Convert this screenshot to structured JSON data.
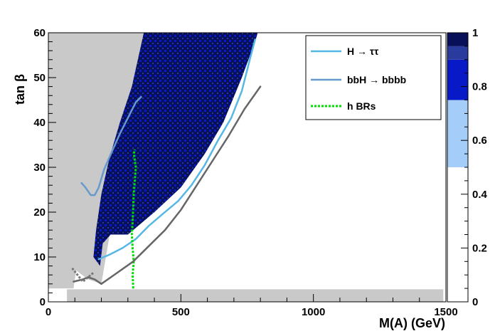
{
  "chart_data": {
    "type": "heatmap",
    "xlabel": "M(A) (GeV)",
    "ylabel": "tan β",
    "xlim": [
      0,
      1500
    ],
    "ylim": [
      0,
      60
    ],
    "x_ticks": [
      "0",
      "500",
      "1000",
      "1500"
    ],
    "y_ticks": [
      "0",
      "10",
      "20",
      "30",
      "40",
      "50",
      "60"
    ],
    "colorbar": {
      "range": [
        0,
        1
      ],
      "ticks": [
        "0",
        "0.2",
        "0.4",
        "0.6",
        "0.8",
        "1"
      ],
      "bands": [
        {
          "from": 0.0,
          "to": 0.5,
          "color": "#ffffff"
        },
        {
          "from": 0.5,
          "to": 0.75,
          "color": "#a4cef9"
        },
        {
          "from": 0.75,
          "to": 0.9,
          "color": "#0819c8"
        },
        {
          "from": 0.9,
          "to": 0.95,
          "color": "#2a3b9e"
        },
        {
          "from": 0.95,
          "to": 1.0,
          "color": "#08105a"
        }
      ]
    },
    "regions": {
      "excluded_color": "#c9c9c9",
      "allowed_color": "#08105a",
      "excluded_upper_left": [
        [
          0,
          60
        ],
        [
          0,
          3
        ],
        [
          95,
          3
        ],
        [
          105,
          7
        ],
        [
          150,
          5
        ],
        [
          200,
          4
        ],
        [
          360,
          60
        ]
      ],
      "allowed_band": [
        [
          195,
          8
        ],
        [
          205,
          13
        ],
        [
          235,
          15
        ],
        [
          300,
          15
        ],
        [
          400,
          20
        ],
        [
          500,
          25.5
        ],
        [
          590,
          33
        ],
        [
          660,
          40
        ],
        [
          730,
          50
        ],
        [
          780,
          58
        ],
        [
          790,
          60
        ],
        [
          360,
          60
        ],
        [
          315,
          48
        ],
        [
          270,
          40
        ],
        [
          230,
          32
        ],
        [
          200,
          24
        ],
        [
          180,
          16
        ],
        [
          170,
          10
        ]
      ],
      "excluded_bottom_strip": [
        [
          70,
          0
        ],
        [
          1490,
          0
        ],
        [
          1490,
          2.8
        ],
        [
          70,
          2.8
        ]
      ]
    },
    "series": [
      {
        "name": "H → ττ",
        "style": "solid",
        "color": "#56b7e6",
        "x": [
          190,
          230,
          280,
          330,
          380,
          430,
          490,
          540,
          590,
          640,
          690,
          730,
          760,
          780
        ],
        "y": [
          9.5,
          10.5,
          12,
          14,
          17,
          19.5,
          22.5,
          26,
          30.5,
          36,
          41,
          47,
          54,
          58.5
        ]
      },
      {
        "name": "bbH → bbbb",
        "style": "solid",
        "color": "#6699cc",
        "x": [
          125,
          140,
          160,
          175,
          190,
          210,
          240,
          270,
          300,
          330,
          350
        ],
        "y": [
          26.5,
          25.5,
          23.8,
          23.8,
          25.5,
          29.5,
          33.5,
          37.5,
          41,
          44.5,
          45.7
        ]
      },
      {
        "name": "h BRs",
        "style": "dotted",
        "color": "#00e000",
        "x": [
          320,
          318,
          322,
          318,
          315,
          318,
          320,
          322,
          326,
          330,
          325,
          323,
          325
        ],
        "y": [
          3,
          6,
          9,
          12,
          15,
          18,
          21,
          24,
          27,
          30,
          32,
          33,
          34
        ]
      },
      {
        "name": "",
        "style": "solid",
        "color": "#666666",
        "x": [
          200,
          260,
          320,
          380,
          440,
          500,
          560,
          620,
          680,
          740,
          800
        ],
        "y": [
          4,
          6.5,
          9,
          12.5,
          16,
          20.5,
          26,
          31.5,
          37,
          43,
          48
        ]
      },
      {
        "name": "",
        "style": "solid",
        "color": "#666666",
        "x": [
          95,
          130,
          150,
          175,
          200
        ],
        "y": [
          4.5,
          5,
          5.5,
          5,
          4
        ]
      },
      {
        "name": "",
        "style": "dotted",
        "color": "#777777",
        "x": [
          90,
          110,
          130,
          150,
          170
        ],
        "y": [
          7.5,
          6,
          4.5,
          5.5,
          6.5
        ]
      }
    ],
    "legend": {
      "placement": "top-right",
      "entries": [
        {
          "label": "H → ττ",
          "color": "#56b7e6",
          "style": "solid"
        },
        {
          "label": "bbH → bbbb",
          "color": "#6699cc",
          "style": "solid"
        },
        {
          "label": "h BRs",
          "color": "#00e000",
          "style": "dotted"
        }
      ]
    }
  }
}
